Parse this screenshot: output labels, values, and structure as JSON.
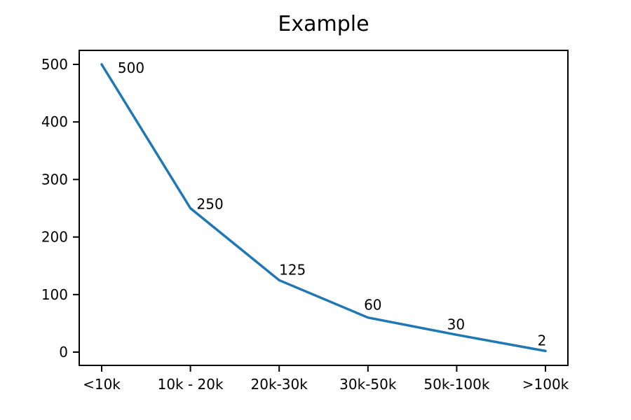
{
  "chart_data": {
    "type": "line",
    "title": "Example",
    "categories": [
      "<10k",
      "10k - 20k",
      "20k-30k",
      "30k-50k",
      "50k-100k",
      ">100k"
    ],
    "values": [
      500,
      250,
      125,
      60,
      30,
      2
    ],
    "point_labels": [
      "500",
      "250",
      "125",
      "60",
      "30",
      "2"
    ],
    "y_ticks": [
      0,
      100,
      200,
      300,
      400,
      500
    ],
    "ylim": [
      0,
      500
    ],
    "xlabel": "",
    "ylabel": "",
    "grid": false,
    "legend": null,
    "line_color": "#1f77b4",
    "axis_color": "#000000",
    "text_color": "#000000",
    "background_color": "#ffffff"
  }
}
